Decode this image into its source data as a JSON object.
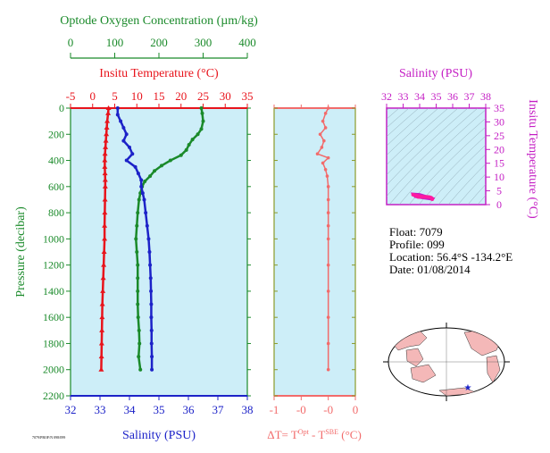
{
  "colors": {
    "oxygen": "#1a8a2a",
    "temperature": "#e8141c",
    "salinity": "#1c22c8",
    "pressure_axis": "#1a8a2a",
    "delta": "#f26b6b",
    "ts_axis": "#c41ec4",
    "panel_bg": "#cdeef8",
    "map_land": "#f4b8b8"
  },
  "main_panel": {
    "oxygen_title": "Optode Oxygen Concentration (µm/kg)",
    "temp_title": "Insitu Temperature (°C)",
    "salinity_title": "Salinity (PSU)",
    "pressure_title": "Pressure (decibar)",
    "footnote": "7079/PROF/N 098/099"
  },
  "delta_panel": {
    "xlabel_main": "ΔT= T",
    "xlabel_sup1": "Opt",
    "xlabel_mid": " - T",
    "xlabel_sup2": "SBE",
    "xlabel_end": " (°C)"
  },
  "ts_panel": {
    "xlabel": "Salinity (PSU)",
    "ylabel": "Insitu Temperature (°C)"
  },
  "float_info": {
    "float": "Float:  7079",
    "profile": "Profile:  099",
    "location": "Location:  56.4°S  -134.2°E",
    "date": "Date:  01/08/2014"
  },
  "chart_data": [
    {
      "type": "line",
      "panel": "main profile",
      "y_label": "Pressure (decibar)",
      "y_range": [
        0,
        2200
      ],
      "y_ticks": [
        0,
        200,
        400,
        600,
        800,
        1000,
        1200,
        1400,
        1600,
        1800,
        2000,
        2200
      ],
      "y_inverted": true,
      "series": [
        {
          "name": "Optode Oxygen Concentration (µm/kg)",
          "axis_range": [
            0,
            400
          ],
          "axis_ticks": [
            0,
            100,
            200,
            300,
            400
          ],
          "points": [
            [
              296,
              0
            ],
            [
              298,
              40
            ],
            [
              300,
              100
            ],
            [
              296,
              160
            ],
            [
              288,
              200
            ],
            [
              276,
              240
            ],
            [
              268,
              280
            ],
            [
              262,
              320
            ],
            [
              250,
              360
            ],
            [
              226,
              400
            ],
            [
              206,
              440
            ],
            [
              190,
              480
            ],
            [
              180,
              520
            ],
            [
              168,
              560
            ],
            [
              162,
              600
            ],
            [
              158,
              650
            ],
            [
              155,
              700
            ],
            [
              152,
              800
            ],
            [
              150,
              900
            ],
            [
              148,
              1000
            ],
            [
              150,
              1100
            ],
            [
              152,
              1200
            ],
            [
              152,
              1300
            ],
            [
              152,
              1400
            ],
            [
              152,
              1500
            ],
            [
              153,
              1600
            ],
            [
              155,
              1700
            ],
            [
              156,
              1800
            ],
            [
              154,
              1900
            ],
            [
              158,
              2000
            ]
          ]
        },
        {
          "name": "Insitu Temperature (°C)",
          "axis_range": [
            -5,
            35
          ],
          "axis_ticks": [
            -5,
            0,
            5,
            10,
            15,
            20,
            25,
            30,
            35
          ],
          "points": [
            [
              3.6,
              0
            ],
            [
              3.5,
              40
            ],
            [
              3.3,
              100
            ],
            [
              3.2,
              150
            ],
            [
              3.1,
              200
            ],
            [
              3.0,
              250
            ],
            [
              2.9,
              300
            ],
            [
              2.8,
              350
            ],
            [
              2.75,
              400
            ],
            [
              2.75,
              450
            ],
            [
              2.8,
              500
            ],
            [
              2.85,
              550
            ],
            [
              2.85,
              600
            ],
            [
              2.8,
              700
            ],
            [
              2.75,
              800
            ],
            [
              2.7,
              900
            ],
            [
              2.7,
              1000
            ],
            [
              2.6,
              1100
            ],
            [
              2.5,
              1200
            ],
            [
              2.4,
              1300
            ],
            [
              2.3,
              1400
            ],
            [
              2.2,
              1500
            ],
            [
              2.15,
              1600
            ],
            [
              2.1,
              1700
            ],
            [
              2.05,
              1800
            ],
            [
              2.0,
              1900
            ],
            [
              1.95,
              2000
            ]
          ]
        },
        {
          "name": "Salinity (PSU)",
          "axis_range": [
            32,
            38
          ],
          "axis_ticks": [
            32,
            33,
            34,
            35,
            36,
            37,
            38
          ],
          "points": [
            [
              33.6,
              0
            ],
            [
              33.6,
              50
            ],
            [
              33.7,
              100
            ],
            [
              33.8,
              150
            ],
            [
              33.9,
              200
            ],
            [
              33.8,
              250
            ],
            [
              34.0,
              300
            ],
            [
              34.1,
              350
            ],
            [
              33.9,
              400
            ],
            [
              34.2,
              450
            ],
            [
              34.3,
              500
            ],
            [
              34.4,
              550
            ],
            [
              34.4,
              600
            ],
            [
              34.45,
              650
            ],
            [
              34.5,
              700
            ],
            [
              34.55,
              800
            ],
            [
              34.6,
              900
            ],
            [
              34.65,
              1000
            ],
            [
              34.68,
              1100
            ],
            [
              34.7,
              1200
            ],
            [
              34.72,
              1300
            ],
            [
              34.73,
              1400
            ],
            [
              34.74,
              1500
            ],
            [
              34.74,
              1600
            ],
            [
              34.75,
              1700
            ],
            [
              34.75,
              1800
            ],
            [
              34.76,
              1900
            ],
            [
              34.76,
              2000
            ]
          ]
        }
      ]
    },
    {
      "type": "line",
      "panel": "delta T profile",
      "name": "ΔT = T(Opt) - T(SBE) (°C)",
      "x_range": [
        -1,
        0.5
      ],
      "x_ticks": [
        -1,
        -0.5,
        0,
        0.5
      ],
      "x_tick_labels": [
        "-1",
        "-0",
        "-0",
        "0"
      ],
      "y_range": [
        0,
        2200
      ],
      "y_inverted": true,
      "points": [
        [
          0.0,
          0
        ],
        [
          -0.05,
          40
        ],
        [
          -0.1,
          100
        ],
        [
          -0.05,
          150
        ],
        [
          -0.15,
          200
        ],
        [
          -0.08,
          250
        ],
        [
          -0.12,
          300
        ],
        [
          -0.2,
          350
        ],
        [
          0.0,
          380
        ],
        [
          -0.1,
          420
        ],
        [
          -0.05,
          470
        ],
        [
          -0.02,
          520
        ],
        [
          0.0,
          600
        ],
        [
          0.0,
          700
        ],
        [
          0.0,
          800
        ],
        [
          0.0,
          900
        ],
        [
          0.0,
          1000
        ],
        [
          0.0,
          1200
        ],
        [
          0.0,
          1400
        ],
        [
          0.0,
          1600
        ],
        [
          0.0,
          1800
        ],
        [
          0.0,
          2000
        ]
      ]
    },
    {
      "type": "scatter",
      "panel": "T-S diagram",
      "x_label": "Salinity (PSU)",
      "y_label": "Insitu Temperature (°C)",
      "x_range": [
        32,
        38
      ],
      "x_ticks": [
        32,
        33,
        34,
        35,
        36,
        37,
        38
      ],
      "y_range": [
        0,
        35
      ],
      "y_ticks": [
        0,
        5,
        10,
        15,
        20,
        25,
        30,
        35
      ],
      "points": [
        [
          33.6,
          3.6
        ],
        [
          33.7,
          3.4
        ],
        [
          33.8,
          3.3
        ],
        [
          33.9,
          3.1
        ],
        [
          34.0,
          3.0
        ],
        [
          34.1,
          2.9
        ],
        [
          34.2,
          2.8
        ],
        [
          34.3,
          2.8
        ],
        [
          34.4,
          2.85
        ],
        [
          34.5,
          2.8
        ],
        [
          34.6,
          2.7
        ],
        [
          34.7,
          2.5
        ],
        [
          34.75,
          2.2
        ],
        [
          34.76,
          1.95
        ],
        [
          33.9,
          2.8
        ],
        [
          34.0,
          2.75
        ],
        [
          33.8,
          3.2
        ]
      ]
    }
  ]
}
